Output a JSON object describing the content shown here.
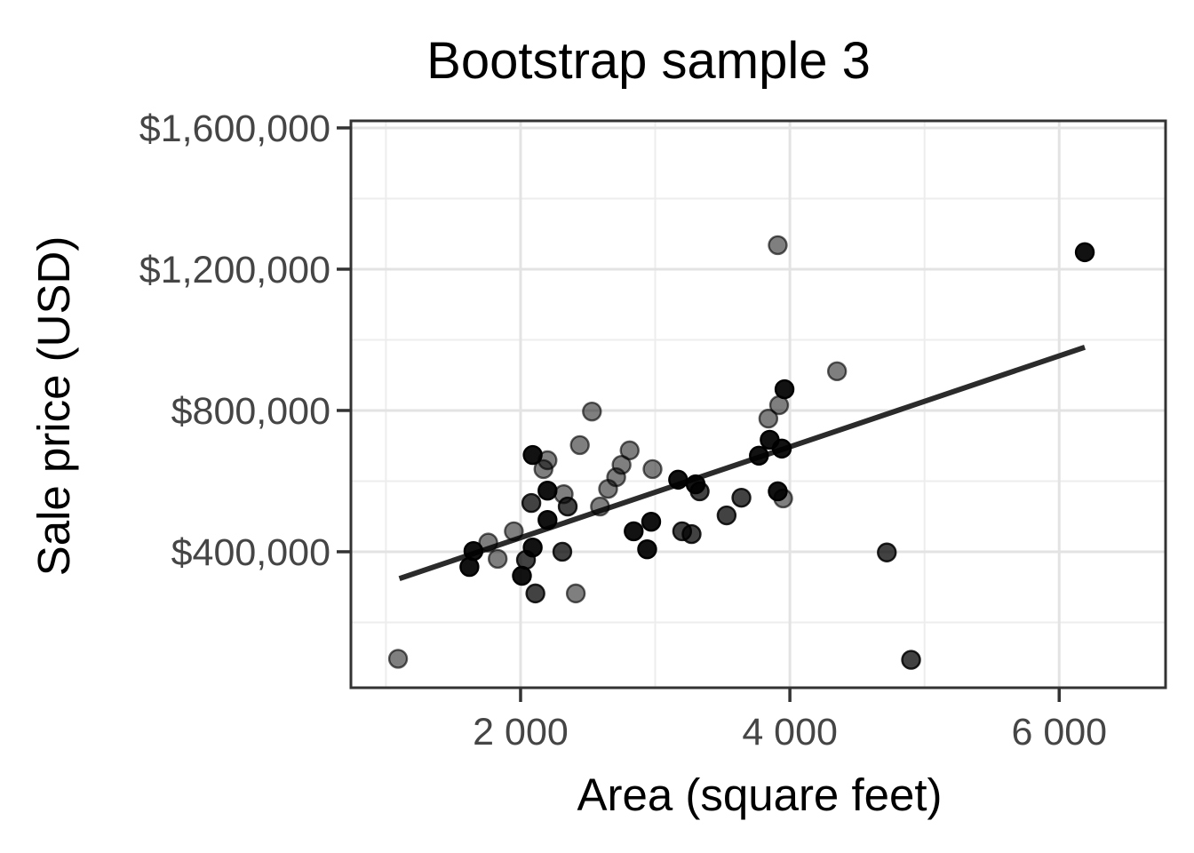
{
  "chart_data": {
    "type": "scatter",
    "title": "Bootstrap sample 3",
    "xlabel": "Area (square feet)",
    "ylabel": "Sale price (USD)",
    "x_domain": [
      740,
      6790
    ],
    "y_domain": [
      15000,
      1620000
    ],
    "grid": true,
    "x_ticks": [
      {
        "value": 2000,
        "label": "2 000"
      },
      {
        "value": 4000,
        "label": "4 000"
      },
      {
        "value": 6000,
        "label": "6 000"
      }
    ],
    "x_minor_ticks": [
      1000,
      3000,
      5000
    ],
    "y_ticks": [
      {
        "value": 400000,
        "label": "$400,000"
      },
      {
        "value": 800000,
        "label": "$800,000"
      },
      {
        "value": 1200000,
        "label": "$1,200,000"
      },
      {
        "value": 1600000,
        "label": "$1,600,000"
      }
    ],
    "y_minor_ticks": [
      200000,
      600000,
      1000000,
      1400000
    ],
    "regression_line": {
      "x1": 1100,
      "y1": 324000,
      "x2": 6190,
      "y2": 979000
    },
    "point_note": "points are area_sqft / sale_price_usd / stack (bootstrap duplicate count shown by darkness)",
    "points": [
      {
        "area": 2530,
        "price": 797000,
        "stack": 1
      },
      {
        "area": 2440,
        "price": 702000,
        "stack": 1
      },
      {
        "area": 2090,
        "price": 674000,
        "stack": 3
      },
      {
        "area": 2200,
        "price": 659000,
        "stack": 1
      },
      {
        "area": 2170,
        "price": 634000,
        "stack": 1
      },
      {
        "area": 2810,
        "price": 687000,
        "stack": 1
      },
      {
        "area": 2750,
        "price": 646000,
        "stack": 1
      },
      {
        "area": 2710,
        "price": 611000,
        "stack": 1
      },
      {
        "area": 2650,
        "price": 578000,
        "stack": 1
      },
      {
        "area": 2590,
        "price": 528000,
        "stack": 1
      },
      {
        "area": 2980,
        "price": 634000,
        "stack": 1
      },
      {
        "area": 2200,
        "price": 573000,
        "stack": 3
      },
      {
        "area": 2320,
        "price": 563000,
        "stack": 1
      },
      {
        "area": 2080,
        "price": 538000,
        "stack": 2
      },
      {
        "area": 2350,
        "price": 528000,
        "stack": 2
      },
      {
        "area": 2200,
        "price": 490000,
        "stack": 3
      },
      {
        "area": 1950,
        "price": 458000,
        "stack": 1
      },
      {
        "area": 2090,
        "price": 412000,
        "stack": 3
      },
      {
        "area": 2040,
        "price": 377000,
        "stack": 2
      },
      {
        "area": 2010,
        "price": 332000,
        "stack": 3
      },
      {
        "area": 1650,
        "price": 402000,
        "stack": 3
      },
      {
        "area": 1760,
        "price": 426000,
        "stack": 1
      },
      {
        "area": 1620,
        "price": 357000,
        "stack": 3
      },
      {
        "area": 1830,
        "price": 380000,
        "stack": 1
      },
      {
        "area": 2310,
        "price": 400000,
        "stack": 2
      },
      {
        "area": 2110,
        "price": 282000,
        "stack": 2
      },
      {
        "area": 2410,
        "price": 282000,
        "stack": 1
      },
      {
        "area": 2840,
        "price": 458000,
        "stack": 3
      },
      {
        "area": 2970,
        "price": 485000,
        "stack": 3
      },
      {
        "area": 2940,
        "price": 407000,
        "stack": 3
      },
      {
        "area": 3200,
        "price": 458000,
        "stack": 2
      },
      {
        "area": 3270,
        "price": 450000,
        "stack": 2
      },
      {
        "area": 3170,
        "price": 604000,
        "stack": 3
      },
      {
        "area": 3300,
        "price": 591000,
        "stack": 3
      },
      {
        "area": 3330,
        "price": 571000,
        "stack": 2
      },
      {
        "area": 3530,
        "price": 503000,
        "stack": 2
      },
      {
        "area": 3640,
        "price": 553000,
        "stack": 2
      },
      {
        "area": 3910,
        "price": 571000,
        "stack": 3
      },
      {
        "area": 3950,
        "price": 551000,
        "stack": 1
      },
      {
        "area": 3770,
        "price": 672000,
        "stack": 3
      },
      {
        "area": 3850,
        "price": 717000,
        "stack": 3
      },
      {
        "area": 3940,
        "price": 692000,
        "stack": 3
      },
      {
        "area": 3840,
        "price": 777000,
        "stack": 1
      },
      {
        "area": 3920,
        "price": 815000,
        "stack": 1
      },
      {
        "area": 3960,
        "price": 860000,
        "stack": 3
      },
      {
        "area": 4350,
        "price": 911000,
        "stack": 1
      },
      {
        "area": 3910,
        "price": 1268000,
        "stack": 1
      },
      {
        "area": 6190,
        "price": 1248000,
        "stack": 3
      },
      {
        "area": 4720,
        "price": 398000,
        "stack": 2
      },
      {
        "area": 4900,
        "price": 94000,
        "stack": 2
      },
      {
        "area": 1090,
        "price": 97000,
        "stack": 1
      }
    ],
    "colors": {
      "point": "#000000",
      "regression_line": "#2b2b2b",
      "grid_major": "#e3e3e3",
      "grid_minor": "#ededed",
      "panel_border": "#333333",
      "tick_label": "#454545",
      "title": "#000000",
      "background": "#ffffff"
    }
  }
}
